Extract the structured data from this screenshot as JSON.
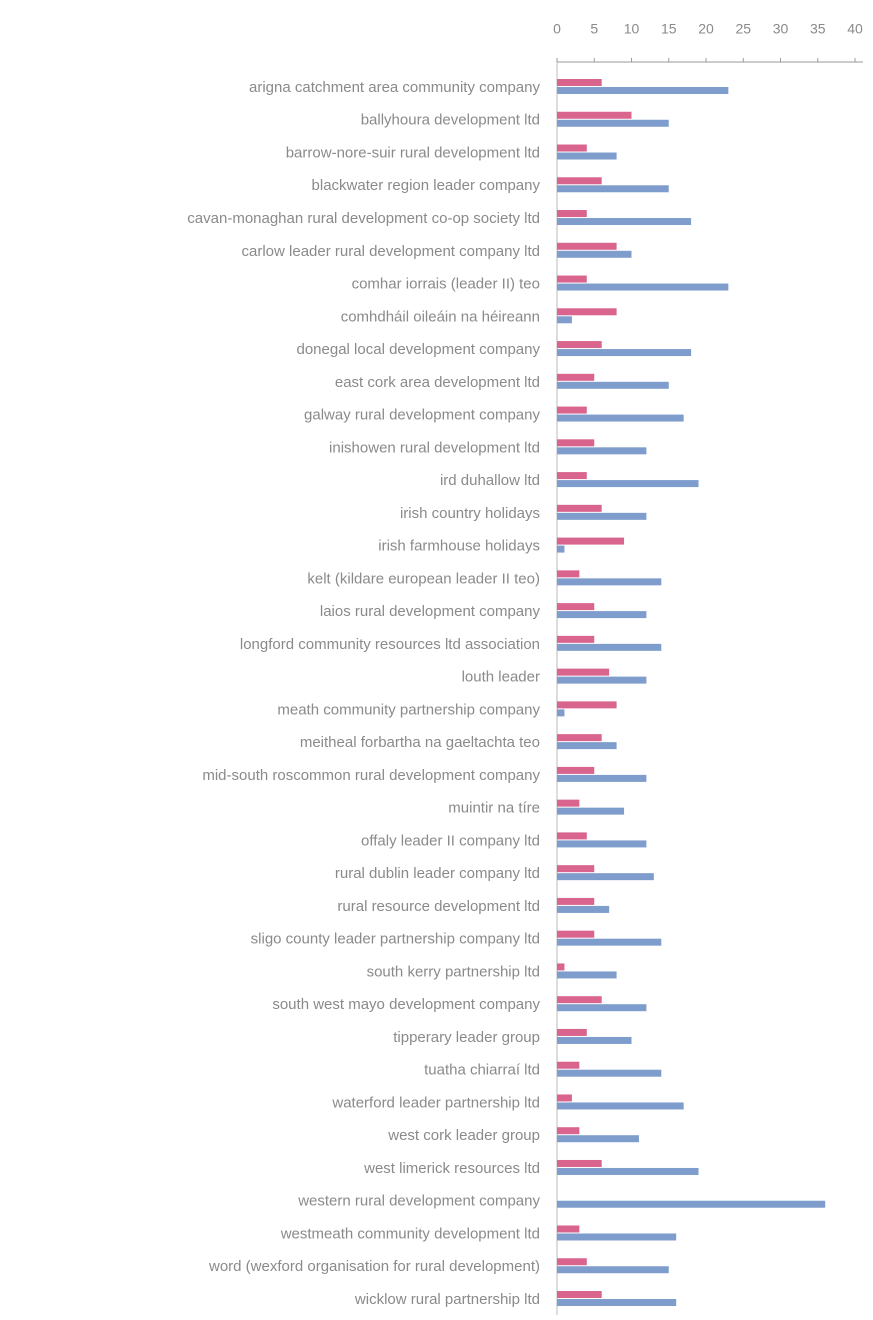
{
  "chart_data": {
    "type": "bar",
    "orientation": "horizontal",
    "categories": [
      "arigna catchment area community company",
      "ballyhoura development ltd",
      "barrow-nore-suir rural development ltd",
      "blackwater region leader company",
      "cavan-monaghan rural development co-op society ltd",
      "carlow leader rural development company ltd",
      "comhar iorrais (leader II) teo",
      "comhdháil oileáin na héireann",
      "donegal local development company",
      "east cork area development ltd",
      "galway rural development company",
      "inishowen rural development ltd",
      "ird duhallow ltd",
      "irish country holidays",
      "irish farmhouse holidays",
      "kelt (kildare european leader II teo)",
      "laios rural development company",
      "longford community resources ltd association",
      "louth leader",
      "meath community partnership company",
      "meitheal forbartha na gaeltachta teo",
      "mid-south roscommon rural development company",
      "muintir na tíre",
      "offaly leader II company ltd",
      "rural dublin leader company ltd",
      "rural resource development ltd",
      "sligo county leader partnership company ltd",
      "south kerry partnership ltd",
      "south west mayo development company",
      "tipperary leader group",
      "tuatha chiarraí ltd",
      "waterford leader partnership ltd",
      "west cork leader group",
      "west limerick resources ltd",
      "western rural development company",
      "westmeath community development ltd",
      "word (wexford organisation for rural development)",
      "wicklow rural partnership ltd"
    ],
    "series": [
      {
        "color": "#d9658f",
        "values": [
          6,
          10,
          4,
          6,
          4,
          8,
          4,
          8,
          6,
          5,
          4,
          5,
          4,
          6,
          9,
          3,
          5,
          5,
          7,
          8,
          6,
          5,
          3,
          4,
          5,
          5,
          5,
          1,
          6,
          4,
          3,
          2,
          3,
          6,
          0,
          3,
          4,
          6
        ]
      },
      {
        "color": "#7f9dcc",
        "values": [
          23,
          15,
          8,
          15,
          18,
          10,
          23,
          2,
          18,
          15,
          17,
          12,
          19,
          12,
          1,
          14,
          12,
          14,
          12,
          1,
          8,
          12,
          9,
          12,
          13,
          7,
          14,
          8,
          12,
          10,
          14,
          17,
          11,
          19,
          36,
          16,
          15,
          16
        ]
      }
    ],
    "xlim": [
      0,
      40
    ],
    "xticks": [
      0,
      5,
      10,
      15,
      20,
      25,
      30,
      35,
      40
    ]
  }
}
